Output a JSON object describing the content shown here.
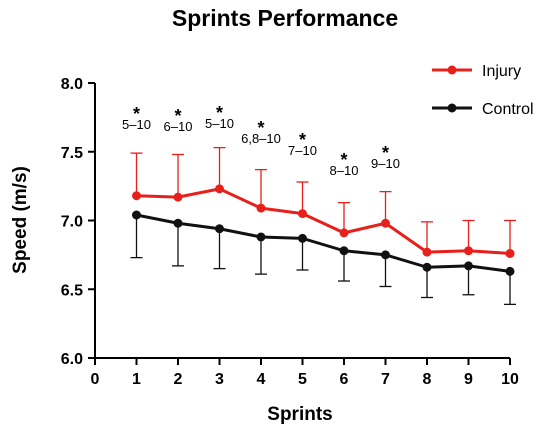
{
  "chart_data": {
    "type": "line",
    "title": "Sprints Performance",
    "xlabel": "Sprints",
    "ylabel": "Speed (m/s)",
    "xlim": [
      0,
      10
    ],
    "ylim": [
      6.0,
      8.0
    ],
    "x_ticks": [
      "0",
      "1",
      "2",
      "3",
      "4",
      "5",
      "6",
      "7",
      "8",
      "9",
      "10"
    ],
    "y_ticks": [
      "6.0",
      "6.5",
      "7.0",
      "7.5",
      "8.0"
    ],
    "x": [
      1,
      2,
      3,
      4,
      5,
      6,
      7,
      8,
      9,
      10
    ],
    "grid": false,
    "legend_position": "top-right",
    "series": [
      {
        "name": "Injury",
        "color": "#e8201b",
        "values": [
          7.18,
          7.17,
          7.23,
          7.09,
          7.05,
          6.91,
          6.98,
          6.77,
          6.78,
          6.76
        ],
        "error_upper": [
          0.31,
          0.31,
          0.3,
          0.28,
          0.23,
          0.22,
          0.23,
          0.22,
          0.22,
          0.24
        ]
      },
      {
        "name": "Control",
        "color": "#111111",
        "values": [
          7.04,
          6.98,
          6.94,
          6.88,
          6.87,
          6.78,
          6.75,
          6.66,
          6.67,
          6.63
        ],
        "error_lower": [
          0.31,
          0.31,
          0.29,
          0.27,
          0.23,
          0.22,
          0.23,
          0.22,
          0.21,
          0.24
        ]
      }
    ],
    "annotations": [
      {
        "x": 1,
        "star": "*",
        "text": "5–10"
      },
      {
        "x": 2,
        "star": "*",
        "text": "6–10"
      },
      {
        "x": 3,
        "star": "*",
        "text": "5–10"
      },
      {
        "x": 4,
        "star": "*",
        "text": "6,8–10"
      },
      {
        "x": 5,
        "star": "*",
        "text": "7–10"
      },
      {
        "x": 6,
        "star": "*",
        "text": "8–10"
      },
      {
        "x": 7,
        "star": "*",
        "text": "9–10"
      }
    ]
  }
}
